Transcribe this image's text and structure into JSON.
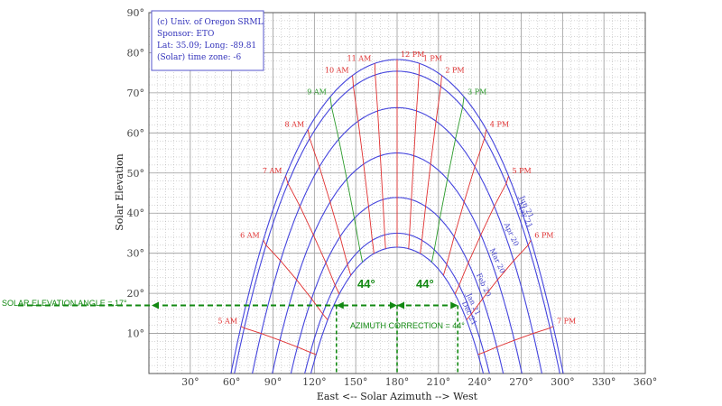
{
  "chart_data": {
    "type": "line",
    "title": "",
    "xlabel": "East <-- Solar Azimuth --> West",
    "ylabel": "Solar Elevation",
    "xlim": [
      0,
      360
    ],
    "ylim": [
      0,
      90
    ],
    "grid": true,
    "x_ticks": [
      "30°",
      "60°",
      "90°",
      "120°",
      "150°",
      "180°",
      "210°",
      "240°",
      "270°",
      "300°",
      "330°",
      "360°"
    ],
    "y_ticks": [
      "10°",
      "20°",
      "30°",
      "40°",
      "50°",
      "60°",
      "70°",
      "80°",
      "90°"
    ],
    "info_box": [
      "(c) Univ. of Oregon SRML",
      "Sponsor: ETO",
      "Lat: 35.09; Long: -89.81",
      "(Solar) time zone: -6"
    ],
    "colors": {
      "date_line": "#4444dd",
      "hour_am_pm": "#e03030",
      "hour_9_3": "#2a9a2a",
      "annotation": "#118811",
      "grid": "#999999"
    },
    "date_curves": [
      {
        "label": "Jun 21",
        "noon": 78.3,
        "rise_az": 59.5
      },
      {
        "label": "May 21",
        "noon": 75.4,
        "rise_az": 62
      },
      {
        "label": "Apr 20",
        "noon": 66.3,
        "rise_az": 75
      },
      {
        "label": "Mar 20",
        "noon": 55,
        "rise_az": 89.5
      },
      {
        "label": "Feb 20",
        "noon": 43.9,
        "rise_az": 103
      },
      {
        "label": "Jan 21",
        "noon": 35,
        "rise_az": 113
      },
      {
        "label": "Dec 21",
        "noon": 31.5,
        "rise_az": 117.5
      }
    ],
    "hour_labels": [
      "5 AM",
      "6 AM",
      "7 AM",
      "8 AM",
      "9 AM",
      "10 AM",
      "11 AM",
      "12 PM",
      "1 PM",
      "2 PM",
      "3 PM",
      "4 PM",
      "5 PM",
      "6 PM",
      "7 PM"
    ],
    "annotations": {
      "elevation_label": "SOLAR ELEVATION ANGLE = 17°",
      "azimuth_label": "AZIMUTH CORRECTION = 44°",
      "left_angle": "44°",
      "right_angle": "44°",
      "elevation": 17,
      "azimuth_left": 136,
      "azimuth_center": 180,
      "azimuth_right": 224
    }
  }
}
